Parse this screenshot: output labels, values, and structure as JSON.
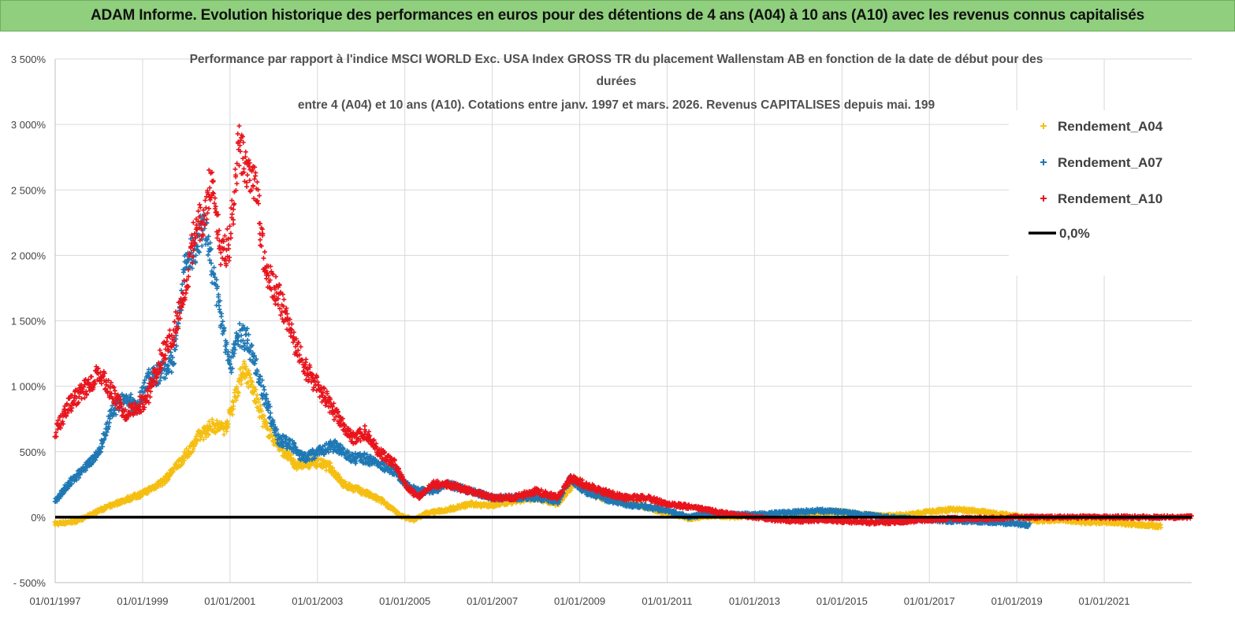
{
  "banner": {
    "title": "ADAM Informe. Evolution historique des performances en euros pour des détentions de 4 ans (A04) à 10 ans (A10) avec les revenus connus capitalisés"
  },
  "colors": {
    "banner": "#8fcf7d",
    "a04": "#f5bf12",
    "a07": "#1f78b4",
    "a10": "#e8141c",
    "zero": "#000000",
    "grid": "#d9d9d9"
  },
  "chart_data": {
    "type": "scatter",
    "title_lines": [
      "Performance par rapport à l'indice MSCI WORLD Exc. USA Index GROSS TR  du placement Wallenstam AB en fonction de la date de début pour des",
      "durées",
      "entre 4 (A04) et 10 ans (A10). Cotations entre janv. 1997 et mars. 2026. Revenus CAPITALISES depuis mai. 199"
    ],
    "ylim": [
      -500,
      3500
    ],
    "y_ticks": [
      -500,
      0,
      500,
      1000,
      1500,
      2000,
      2500,
      3000,
      3500
    ],
    "y_tick_labels": [
      "- 500%",
      "0%",
      "500%",
      "1 000%",
      "1 500%",
      "2 000%",
      "2 500%",
      "3 000%",
      "3 500%"
    ],
    "xlim": [
      1997.0,
      2023.0
    ],
    "x_ticks": [
      1997,
      1999,
      2001,
      2003,
      2005,
      2007,
      2009,
      2011,
      2013,
      2015,
      2017,
      2019,
      2021
    ],
    "x_tick_labels": [
      "01/01/1997",
      "01/01/1999",
      "01/01/2001",
      "01/01/2003",
      "01/01/2005",
      "01/01/2007",
      "01/01/2009",
      "01/01/2011",
      "01/01/2013",
      "01/01/2015",
      "01/01/2017",
      "01/01/2019",
      "01/01/2021"
    ],
    "legend": [
      "Rendement_A04",
      "Rendement_A07",
      "Rendement_A10",
      "0,0%"
    ],
    "legend_position": "top-right",
    "series": [
      {
        "name": "Rendement_A04",
        "color": "#f5bf12",
        "x": [
          1997.0,
          1997.5,
          1998.0,
          1998.5,
          1999.0,
          1999.5,
          2000.0,
          2000.3,
          2000.6,
          2000.9,
          2001.1,
          2001.3,
          2001.5,
          2001.8,
          2002.1,
          2002.5,
          2003.0,
          2003.3,
          2003.6,
          2004.0,
          2004.5,
          2004.9,
          2005.2,
          2005.5,
          2006.0,
          2006.5,
          2007.0,
          2007.5,
          2008.0,
          2008.5,
          2008.9,
          2009.2,
          2009.5,
          2010.0,
          2010.5,
          2011.0,
          2011.5,
          2012.0,
          2012.5,
          2013.0,
          2013.5,
          2014.0,
          2014.5,
          2015.0,
          2015.5,
          2016.0,
          2016.5,
          2017.0,
          2017.5,
          2018.0,
          2018.5,
          2019.0,
          2019.5,
          2020.0,
          2020.5,
          2021.0,
          2021.5,
          2022.0,
          2022.3
        ],
        "y": [
          -50,
          -30,
          50,
          120,
          180,
          280,
          480,
          620,
          700,
          680,
          900,
          1150,
          1000,
          700,
          550,
          400,
          420,
          380,
          250,
          200,
          120,
          10,
          -20,
          30,
          60,
          100,
          90,
          120,
          150,
          100,
          280,
          200,
          150,
          120,
          80,
          30,
          -10,
          10,
          0,
          10,
          20,
          10,
          30,
          40,
          20,
          10,
          20,
          40,
          60,
          50,
          30,
          10,
          -30,
          -20,
          -40,
          -40,
          -50,
          -60,
          -70
        ]
      },
      {
        "name": "Rendement_A07",
        "color": "#1f78b4",
        "x": [
          1997.0,
          1997.3,
          1997.6,
          1998.0,
          1998.3,
          1998.6,
          1998.9,
          1999.1,
          1999.4,
          1999.7,
          2000.0,
          2000.2,
          2000.4,
          2000.6,
          2000.8,
          2001.0,
          2001.2,
          2001.4,
          2001.6,
          2001.8,
          2002.1,
          2002.4,
          2002.7,
          2003.0,
          2003.4,
          2003.8,
          2004.1,
          2004.4,
          2004.8,
          2005.0,
          2005.3,
          2005.6,
          2006.0,
          2006.5,
          2007.0,
          2007.5,
          2008.0,
          2008.5,
          2008.8,
          2009.1,
          2009.5,
          2010.0,
          2010.5,
          2011.0,
          2011.5,
          2012.0,
          2012.5,
          2013.0,
          2013.5,
          2014.0,
          2014.5,
          2015.0,
          2015.5,
          2016.0,
          2016.5,
          2017.0,
          2017.5,
          2018.0,
          2018.5,
          2019.0,
          2019.3
        ],
        "y": [
          120,
          250,
          350,
          500,
          800,
          900,
          850,
          1050,
          1100,
          1200,
          1950,
          2050,
          2250,
          1900,
          1500,
          1150,
          1400,
          1350,
          1150,
          900,
          600,
          550,
          450,
          500,
          550,
          450,
          450,
          400,
          350,
          250,
          200,
          200,
          250,
          200,
          150,
          150,
          150,
          120,
          300,
          200,
          150,
          100,
          80,
          50,
          0,
          30,
          20,
          20,
          30,
          40,
          50,
          40,
          20,
          0,
          -10,
          -20,
          -30,
          -30,
          -40,
          -50,
          -60
        ]
      },
      {
        "name": "Rendement_A10",
        "color": "#e8141c",
        "x": [
          1997.0,
          1997.3,
          1997.6,
          1998.0,
          1998.3,
          1998.6,
          1998.9,
          1999.1,
          1999.4,
          1999.7,
          2000.0,
          2000.2,
          2000.4,
          2000.6,
          2000.8,
          2001.0,
          2001.2,
          2001.4,
          2001.6,
          2001.8,
          2002.1,
          2002.4,
          2002.7,
          2003.0,
          2003.4,
          2003.8,
          2004.1,
          2004.4,
          2004.8,
          2005.0,
          2005.3,
          2005.6,
          2006.0,
          2006.5,
          2007.0,
          2007.5,
          2008.0,
          2008.5,
          2008.8,
          2009.1,
          2009.5,
          2010.0,
          2010.5,
          2011.0,
          2011.5,
          2012.0,
          2012.5,
          2013.0,
          2013.5,
          2014.0,
          2014.5,
          2015.0,
          2015.5,
          2016.0,
          2016.5,
          2017.0,
          2017.5,
          2018.0,
          2018.5,
          2019.0,
          2019.5,
          2020.0,
          2020.5,
          2021.0,
          2021.5,
          2022.0,
          2022.5,
          2023.0
        ],
        "y": [
          650,
          850,
          950,
          1100,
          950,
          800,
          850,
          900,
          1200,
          1400,
          1800,
          2200,
          2300,
          2600,
          2000,
          2100,
          2850,
          2600,
          2500,
          1900,
          1700,
          1400,
          1150,
          1000,
          800,
          600,
          650,
          500,
          400,
          250,
          150,
          250,
          250,
          200,
          150,
          150,
          200,
          150,
          300,
          250,
          200,
          150,
          150,
          100,
          80,
          50,
          20,
          0,
          -20,
          -30,
          -20,
          -30,
          -40,
          -40,
          -30,
          -20,
          -10,
          -10,
          -10,
          0,
          0,
          0,
          0,
          0,
          0,
          0,
          0,
          0
        ]
      }
    ],
    "reference_line": {
      "name": "0,0%",
      "value": 0,
      "color": "#000000"
    }
  }
}
